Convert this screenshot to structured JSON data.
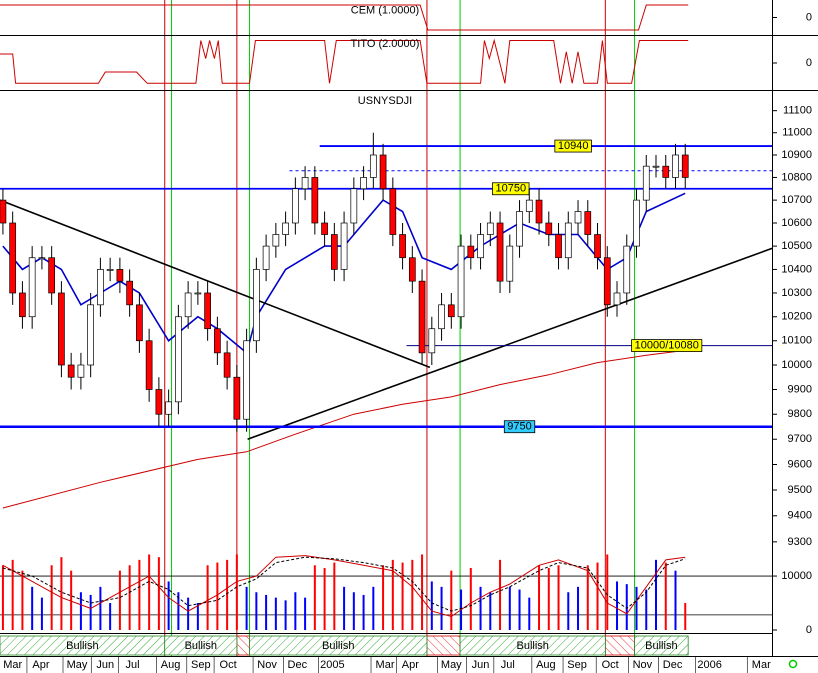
{
  "chart_data": [
    {
      "type": "line",
      "title": "CEM (1.0000)",
      "ylim": [
        -1.2,
        1.2
      ],
      "yticks": [
        0
      ],
      "color": "#cc0000",
      "x": [
        -0.3,
        42.8,
        43.6,
        65.2,
        66,
        70.3
      ],
      "values": [
        1,
        1,
        -1,
        -1,
        1,
        1
      ]
    },
    {
      "type": "line",
      "title": "TITO (2.0000)",
      "ylim": [
        -1.2,
        1.2
      ],
      "yticks": [
        0
      ],
      "color": "#cc0000",
      "x": [
        -0.3,
        1,
        1.3,
        9.8,
        10.5,
        13.7,
        14.8,
        19.8,
        20.3,
        20.8,
        21.2,
        21.7,
        22.1,
        22.5,
        25.3,
        25.9,
        33,
        33.5,
        34.2,
        42.8,
        43.5,
        49,
        49.4,
        49.9,
        50.4,
        51.5,
        52,
        56.5,
        57.2,
        57.8,
        58.4,
        59,
        59.6,
        61,
        61.5,
        62,
        64.5,
        65.3,
        70.3
      ],
      "values": [
        0.4,
        0.4,
        -0.9,
        -0.9,
        -0.4,
        -0.4,
        -0.9,
        -0.9,
        1,
        0.2,
        1,
        0.2,
        1,
        -0.9,
        -0.9,
        1,
        1,
        -0.9,
        1,
        1,
        -0.9,
        -0.9,
        1,
        0.2,
        1,
        -0.9,
        1,
        1,
        -0.9,
        0.5,
        -0.9,
        0.5,
        -0.9,
        -0.9,
        1,
        -0.9,
        -0.9,
        1,
        1
      ]
    },
    {
      "type": "candlestick",
      "title": "USNYSDJI",
      "log_scale": true,
      "xlim": [
        -0.3,
        78.9
      ],
      "ylim": [
        9250,
        11190
      ],
      "yticks": [
        9300,
        9400,
        9500,
        9600,
        9700,
        9800,
        9900,
        10000,
        10100,
        10200,
        10300,
        10400,
        10500,
        10600,
        10700,
        10800,
        10900,
        11000,
        11100
      ],
      "up_color": "#ffffff",
      "down_color": "#ff0000",
      "open": [
        10700,
        10600,
        10300,
        10200,
        10450,
        10450,
        10300,
        10000,
        9950,
        10000,
        10250,
        10400,
        10400,
        10350,
        10250,
        10100,
        9900,
        9800,
        9850,
        10200,
        10300,
        10300,
        10150,
        10050,
        9950,
        9780,
        10100,
        10400,
        10500,
        10550,
        10600,
        10750,
        10800,
        10600,
        10550,
        10400,
        10600,
        10750,
        10800,
        10900,
        10750,
        10550,
        10450,
        10350,
        10050,
        10150,
        10250,
        10200,
        10500,
        10450,
        10550,
        10600,
        10350,
        10500,
        10650,
        10700,
        10600,
        10550,
        10450,
        10600,
        10650,
        10550,
        10450,
        10250,
        10300,
        10500,
        10700,
        10850,
        10850,
        10800,
        10900
      ],
      "high": [
        10750,
        10650,
        10350,
        10500,
        10500,
        10500,
        10350,
        10050,
        10050,
        10300,
        10450,
        10450,
        10450,
        10400,
        10300,
        10150,
        9950,
        9900,
        10250,
        10350,
        10350,
        10350,
        10200,
        10100,
        10000,
        10150,
        10450,
        10550,
        10600,
        10650,
        10800,
        10850,
        10850,
        10650,
        10600,
        10650,
        10800,
        10850,
        11000,
        10950,
        10800,
        10600,
        10500,
        10400,
        10200,
        10300,
        10300,
        10550,
        10550,
        10600,
        10650,
        10650,
        10550,
        10700,
        10750,
        10750,
        10650,
        10600,
        10650,
        10700,
        10700,
        10600,
        10500,
        10350,
        10550,
        10750,
        10900,
        10900,
        10900,
        10950,
        10950
      ],
      "low": [
        10550,
        10250,
        10150,
        10150,
        10400,
        10250,
        9950,
        9900,
        9900,
        9950,
        10200,
        10350,
        10300,
        10200,
        10050,
        9850,
        9750,
        9750,
        9800,
        10150,
        10250,
        10100,
        10000,
        9900,
        9730,
        9730,
        10050,
        10350,
        10450,
        10500,
        10550,
        10700,
        10550,
        10500,
        10350,
        10350,
        10550,
        10700,
        10750,
        10700,
        10500,
        10400,
        10300,
        10000,
        10000,
        10100,
        10150,
        10150,
        10400,
        10400,
        10500,
        10300,
        10300,
        10450,
        10600,
        10550,
        10500,
        10400,
        10400,
        10550,
        10500,
        10400,
        10200,
        10200,
        10250,
        10450,
        10650,
        10800,
        10750,
        10750,
        10750
      ],
      "close": [
        10600,
        10300,
        10200,
        10450,
        10450,
        10300,
        10000,
        9950,
        10000,
        10250,
        10400,
        10400,
        10350,
        10250,
        10100,
        9900,
        9800,
        9850,
        10200,
        10300,
        10300,
        10150,
        10050,
        9950,
        9780,
        10100,
        10400,
        10500,
        10550,
        10600,
        10750,
        10800,
        10600,
        10550,
        10400,
        10600,
        10750,
        10800,
        10900,
        10750,
        10550,
        10450,
        10350,
        10050,
        10150,
        10250,
        10200,
        10500,
        10450,
        10550,
        10600,
        10350,
        10500,
        10650,
        10700,
        10600,
        10550,
        10450,
        10600,
        10650,
        10550,
        10450,
        10250,
        10300,
        10500,
        10700,
        10850,
        10850,
        10800,
        10900,
        10800
      ],
      "lines": [
        {
          "color": "#cc0000",
          "x": [
            0,
            10,
            20,
            25,
            30,
            36,
            41,
            46,
            51,
            56,
            61,
            66,
            70
          ],
          "values": [
            9430,
            9530,
            9620,
            9650,
            9720,
            9800,
            9840,
            9870,
            9920,
            9960,
            10010,
            10040,
            10060
          ]
        },
        {
          "color": "#0000cc",
          "x": [
            0,
            2,
            4,
            6,
            8,
            10,
            12,
            14,
            17,
            20,
            22,
            25,
            26,
            29,
            33,
            35,
            37,
            39,
            41,
            43,
            46,
            49,
            53,
            56,
            59,
            62,
            64,
            66,
            70
          ],
          "values": [
            10500,
            10400,
            10450,
            10400,
            10250,
            10300,
            10350,
            10300,
            10100,
            10200,
            10150,
            10050,
            10200,
            10400,
            10500,
            10500,
            10600,
            10700,
            10650,
            10450,
            10400,
            10500,
            10600,
            10550,
            10550,
            10400,
            10450,
            10650,
            10730
          ]
        }
      ],
      "levels": [
        {
          "value": 10940,
          "start": 32.5,
          "label_at": 58.5,
          "color": "#0000ff",
          "label_color": "#ffff00"
        },
        {
          "value": 10830,
          "start": 29.4,
          "color": "#0000ff",
          "dashed": true
        },
        {
          "value": 10750,
          "start": -0.3,
          "label_at": 52.1,
          "color": "#0000ff",
          "label_color": "#ffff00"
        },
        {
          "value": 10080,
          "label": "10000/10080",
          "start": 41.4,
          "label_at": 68.1,
          "color": "#000080",
          "label_color": "#ffff00"
        },
        {
          "value": 9750,
          "start": -0.3,
          "label_at": 53,
          "color": "#0000ff",
          "label_color": "#33ccff"
        }
      ],
      "trendlines": [
        {
          "color": "#000000",
          "x": [
            -0.3,
            43.8
          ],
          "values": [
            10700,
            9990
          ]
        },
        {
          "color": "#000000",
          "x": [
            25.1,
            78.9
          ],
          "values": [
            9700,
            10490
          ]
        }
      ],
      "signals": [
        {
          "color": "#cc0000",
          "x": [
            16.6,
            24,
            43.5,
            61.8
          ]
        },
        {
          "color": "#00cc00",
          "x": [
            17.3,
            25.3,
            46.9,
            64.8
          ]
        }
      ]
    },
    {
      "type": "bar",
      "ylim": [
        0,
        15200
      ],
      "yticks": [
        0,
        10000
      ],
      "levels": [
        10000,
        2800
      ],
      "up_color": "#0000ff",
      "down_color": "#ff0000",
      "values": [
        12000,
        13000,
        11000,
        8000,
        6000,
        12000,
        13500,
        11000,
        7000,
        6500,
        8000,
        5000,
        11000,
        12000,
        13000,
        14000,
        13500,
        9000,
        7000,
        6000,
        5000,
        12000,
        12500,
        13000,
        14000,
        8000,
        7000,
        6500,
        6000,
        5500,
        7000,
        6000,
        12000,
        11500,
        12500,
        8000,
        7000,
        6500,
        8000,
        12000,
        13000,
        12500,
        13000,
        14000,
        9000,
        8000,
        11000,
        7500,
        11500,
        8000,
        7000,
        13000,
        8000,
        7500,
        6000,
        12000,
        11500,
        12000,
        7000,
        8000,
        12000,
        12500,
        14000,
        9000,
        8500,
        8000,
        7500,
        13000,
        12500,
        11000,
        5000
      ],
      "series": [
        {
          "color": "#cc0000",
          "x": [
            0,
            3,
            6,
            9,
            12,
            15,
            17,
            19,
            22,
            24,
            26,
            28,
            31,
            34,
            37,
            40,
            42,
            44,
            46,
            48,
            50,
            52,
            55,
            57,
            60,
            62,
            64,
            66,
            68,
            70
          ],
          "values": [
            12000,
            9000,
            6000,
            4000,
            7000,
            10000,
            6000,
            3500,
            6500,
            9000,
            10000,
            13500,
            13800,
            13000,
            12000,
            11000,
            8000,
            3500,
            2500,
            5000,
            7000,
            8500,
            12000,
            13000,
            11000,
            5000,
            3000,
            8000,
            13000,
            13500
          ]
        },
        {
          "color": "#000000",
          "dashed": true,
          "x": [
            0,
            3,
            6,
            9,
            12,
            15,
            17,
            19,
            22,
            24,
            26,
            28,
            31,
            34,
            37,
            40,
            42,
            44,
            46,
            48,
            50,
            52,
            55,
            57,
            60,
            62,
            64,
            66,
            68,
            70
          ],
          "values": [
            11500,
            10000,
            7000,
            5000,
            6000,
            9000,
            7500,
            4500,
            5500,
            8000,
            9500,
            12500,
            13500,
            13200,
            12500,
            11500,
            9000,
            5000,
            3500,
            4500,
            6500,
            8000,
            11000,
            12500,
            11500,
            6500,
            4000,
            7000,
            12000,
            13200
          ]
        }
      ],
      "bands": [
        {
          "label": "Bullish",
          "start": -0.3,
          "end": 16.6
        },
        {
          "label": "Bullish",
          "start": 16.6,
          "end": 24
        },
        {
          "label": "Bullish",
          "start": 25.3,
          "end": 43.5
        },
        {
          "label": "Bullish",
          "start": 46.9,
          "end": 61.8
        },
        {
          "label": "Bullish",
          "start": 64.8,
          "end": 70.3
        }
      ],
      "bearish_bands": [
        {
          "start": 24,
          "end": 25.3
        },
        {
          "start": 43.5,
          "end": 46.9
        },
        {
          "start": 61.8,
          "end": 64.8
        }
      ],
      "xticks": [
        {
          "value": 1.0,
          "label": "Mar"
        },
        {
          "value": 3.9,
          "label": "Apr"
        },
        {
          "value": 7.6,
          "label": "May"
        },
        {
          "value": 10.5,
          "label": "Jun"
        },
        {
          "value": 13.3,
          "label": "Jul"
        },
        {
          "value": 17.2,
          "label": "Aug"
        },
        {
          "value": 20.3,
          "label": "Sep"
        },
        {
          "value": 23.1,
          "label": "Oct"
        },
        {
          "value": 27.1,
          "label": "Nov"
        },
        {
          "value": 30.2,
          "label": "Dec"
        },
        {
          "value": 33.8,
          "label": "2005"
        },
        {
          "value": 39.2,
          "label": "Mar"
        },
        {
          "value": 41.8,
          "label": "Apr"
        },
        {
          "value": 46,
          "label": "May"
        },
        {
          "value": 49,
          "label": "Jun"
        },
        {
          "value": 51.8,
          "label": "Jul"
        },
        {
          "value": 55.7,
          "label": "Aug"
        },
        {
          "value": 58.9,
          "label": "Sep"
        },
        {
          "value": 62.3,
          "label": "Oct"
        },
        {
          "value": 65.6,
          "label": "Nov"
        },
        {
          "value": 68.7,
          "label": "Dec"
        },
        {
          "value": 72.5,
          "label": "2006"
        },
        {
          "value": 77.8,
          "label": "Mar"
        }
      ]
    }
  ]
}
